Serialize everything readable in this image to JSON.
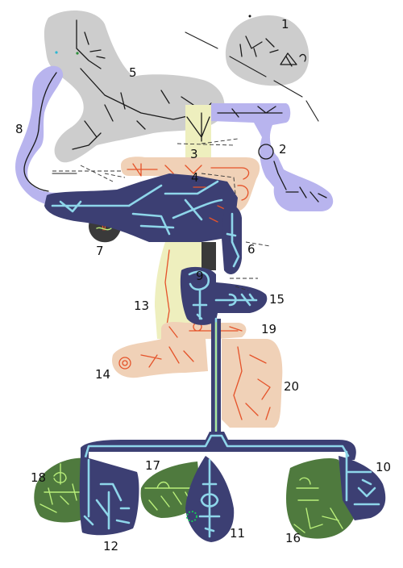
{
  "colors": {
    "gray_area": "#cdcdcd",
    "violet_area": "#b8b4ee",
    "navy_area": "#3c3f73",
    "dark_gray_area": "#3a3a3a",
    "yellow_area": "#eeefbe",
    "peach_area": "#f0d1b7",
    "green_area": "#4f7a3e",
    "cyan_line": "#8ed6ea",
    "red_line": "#e5532a",
    "green_line": "#b9ef7a"
  },
  "labels": [
    "1",
    "2",
    "3",
    "4",
    "5",
    "6",
    "7",
    "8",
    "9",
    "10",
    "11",
    "12",
    "13",
    "14",
    "15",
    "16",
    "17",
    "18",
    "19",
    "20"
  ]
}
